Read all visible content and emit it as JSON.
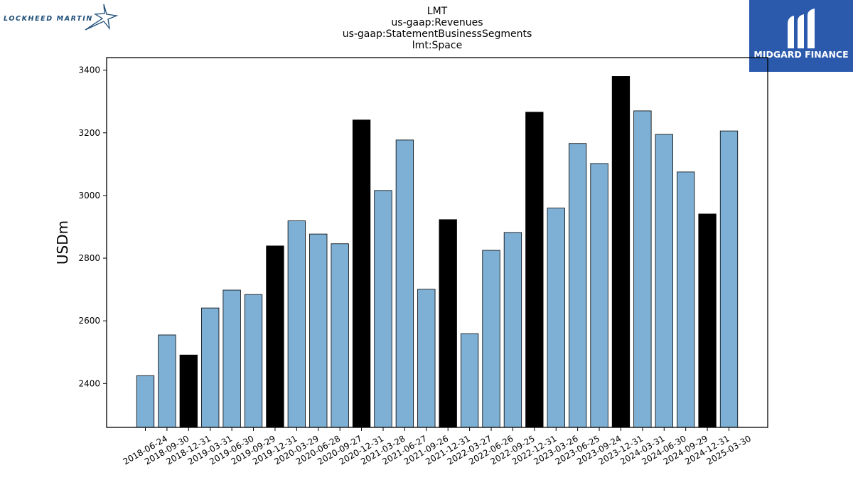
{
  "branding": {
    "left_logo_text": "LOCKHEED MARTIN",
    "right_logo_text": "MIDGARD FINANCE",
    "right_logo_bg": "#2b5aad"
  },
  "chart_data": {
    "type": "bar",
    "title": [
      "LMT",
      "us-gaap:Revenues",
      "us-gaap:StatementBusinessSegments",
      "lmt:Space"
    ],
    "xlabel": "",
    "ylabel": "USDm",
    "ylim": [
      2260,
      3440
    ],
    "yticks": [
      2400,
      2600,
      2800,
      3000,
      3200,
      3400
    ],
    "grid": false,
    "colors": {
      "quarter": "#7eb0d5",
      "year_end": "#000000"
    },
    "categories": [
      "2018-06-24",
      "2018-09-30",
      "2018-12-31",
      "2019-03-31",
      "2019-06-30",
      "2019-09-29",
      "2019-12-31",
      "2020-03-29",
      "2020-06-28",
      "2020-09-27",
      "2020-12-31",
      "2021-03-28",
      "2021-06-27",
      "2021-09-26",
      "2021-12-31",
      "2022-03-27",
      "2022-06-26",
      "2022-09-25",
      "2022-12-31",
      "2023-03-26",
      "2023-06-25",
      "2023-09-24",
      "2023-12-31",
      "2024-03-31",
      "2024-06-30",
      "2024-09-29",
      "2024-12-31",
      "2025-03-30"
    ],
    "values": [
      2425,
      2555,
      2491,
      2641,
      2698,
      2684,
      2839,
      2919,
      2877,
      2846,
      3241,
      3016,
      3177,
      2701,
      2923,
      2559,
      2825,
      2882,
      3266,
      2960,
      3166,
      3102,
      3380,
      3270,
      3195,
      3075,
      2941,
      3206
    ],
    "highlight": [
      false,
      false,
      true,
      false,
      false,
      false,
      true,
      false,
      false,
      false,
      true,
      false,
      false,
      false,
      true,
      false,
      false,
      false,
      true,
      false,
      false,
      false,
      true,
      false,
      false,
      false,
      true,
      false
    ]
  }
}
